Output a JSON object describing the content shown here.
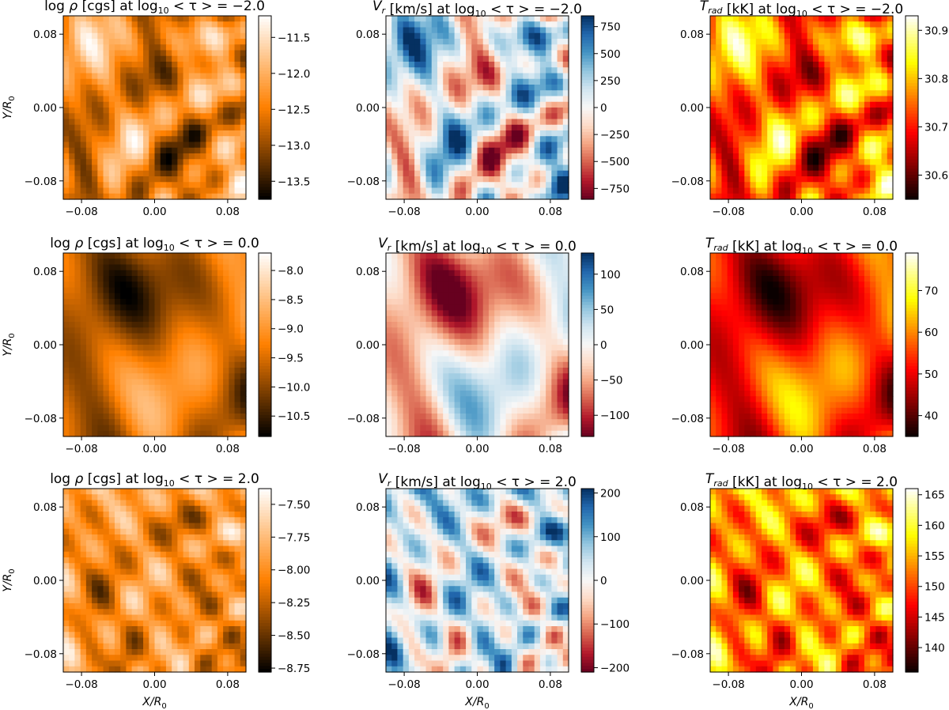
{
  "figure": {
    "rows": [
      "log_tau_-2",
      "log_tau_0",
      "log_tau_2"
    ],
    "columns": [
      "density",
      "radial_velocity",
      "radiation_temperature"
    ]
  },
  "chart_data": [
    {
      "type": "heatmap",
      "row": 0,
      "col": 0,
      "title": {
        "pre": "log ",
        "sym": "ρ",
        "mid": " [cgs] at log",
        "sub": "10",
        "post": " < τ > = −2.0"
      },
      "colormap": "afmhot",
      "field": "density",
      "xlabel": "",
      "ylabel": "Y/R0",
      "xlim": [
        -0.1,
        0.1
      ],
      "ylim": [
        -0.1,
        0.1
      ],
      "xticks": [
        -0.08,
        0.0,
        0.08
      ],
      "xtick_labels": [
        "−0.08",
        "0.00",
        "0.08"
      ],
      "yticks": [
        -0.08,
        0.0,
        0.08
      ],
      "ytick_labels": [
        "−0.08",
        "0.00",
        "0.08"
      ],
      "colorbar": {
        "range": [
          -13.75,
          -11.2
        ],
        "ticks": [
          -13.5,
          -13.0,
          -12.5,
          -12.0,
          -11.5
        ],
        "labels": [
          "−13.5",
          "−13.0",
          "−12.5",
          "−12.0",
          "−11.5"
        ]
      }
    },
    {
      "type": "heatmap",
      "row": 0,
      "col": 1,
      "title": {
        "pre": "",
        "sym": "V",
        "symsub": "r",
        "mid": " [km/s] at log",
        "sub": "10",
        "post": " < τ > = −2.0"
      },
      "colormap": "RdBu",
      "field": "velocity",
      "xlabel": "",
      "ylabel": "",
      "xlim": [
        -0.1,
        0.1
      ],
      "ylim": [
        -0.1,
        0.1
      ],
      "xticks": [
        -0.08,
        0.0,
        0.08
      ],
      "xtick_labels": [
        "−0.08",
        "0.00",
        "0.08"
      ],
      "yticks": [
        -0.08,
        0.0,
        0.08
      ],
      "ytick_labels": [
        "−0.08",
        "0.00",
        "0.08"
      ],
      "colorbar": {
        "range": [
          -850,
          850
        ],
        "ticks": [
          -750,
          -500,
          -250,
          0,
          250,
          500,
          750
        ],
        "labels": [
          "−750",
          "−500",
          "−250",
          "0",
          "250",
          "500",
          "750"
        ]
      }
    },
    {
      "type": "heatmap",
      "row": 0,
      "col": 2,
      "title": {
        "pre": "",
        "sym": "T",
        "symsub": "rad",
        "mid": " [kK] at log",
        "sub": "10",
        "post": " < τ > = −2.0"
      },
      "colormap": "hot",
      "field": "temperature",
      "xlabel": "",
      "ylabel": "",
      "xlim": [
        -0.1,
        0.1
      ],
      "ylim": [
        -0.1,
        0.1
      ],
      "xticks": [
        -0.08,
        0.0,
        0.08
      ],
      "xtick_labels": [
        "−0.08",
        "0.00",
        "0.08"
      ],
      "yticks": [
        -0.08,
        0.0,
        0.08
      ],
      "ytick_labels": [
        "−0.08",
        "0.00",
        "0.08"
      ],
      "colorbar": {
        "range": [
          30.55,
          30.93
        ],
        "ticks": [
          30.6,
          30.7,
          30.8,
          30.9
        ],
        "labels": [
          "30.6",
          "30.7",
          "30.8",
          "30.9"
        ]
      }
    },
    {
      "type": "heatmap",
      "row": 1,
      "col": 0,
      "title": {
        "pre": "log ",
        "sym": "ρ",
        "mid": " [cgs] at log",
        "sub": "10",
        "post": " < τ > = 0.0"
      },
      "colormap": "afmhot",
      "field": "density",
      "xlabel": "",
      "ylabel": "Y/R0",
      "xlim": [
        -0.1,
        0.1
      ],
      "ylim": [
        -0.1,
        0.1
      ],
      "xticks": [
        -0.08,
        0.0,
        0.08
      ],
      "xtick_labels": [
        "−0.08",
        "0.00",
        "0.08"
      ],
      "yticks": [
        -0.08,
        0.0,
        0.08
      ],
      "ytick_labels": [
        "−0.08",
        "0.00",
        "0.08"
      ],
      "colorbar": {
        "range": [
          -10.85,
          -7.7
        ],
        "ticks": [
          -10.5,
          -10.0,
          -9.5,
          -9.0,
          -8.5,
          -8.0
        ],
        "labels": [
          "−10.5",
          "−10.0",
          "−9.5",
          "−9.0",
          "−8.5",
          "−8.0"
        ]
      }
    },
    {
      "type": "heatmap",
      "row": 1,
      "col": 1,
      "title": {
        "pre": "",
        "sym": "V",
        "symsub": "r",
        "mid": " [km/s] at log",
        "sub": "10",
        "post": " < τ > = 0.0"
      },
      "colormap": "RdBu",
      "field": "velocity",
      "xlabel": "",
      "ylabel": "",
      "xlim": [
        -0.1,
        0.1
      ],
      "ylim": [
        -0.1,
        0.1
      ],
      "xticks": [
        -0.08,
        0.0,
        0.08
      ],
      "xtick_labels": [
        "−0.08",
        "0.00",
        "0.08"
      ],
      "yticks": [
        -0.08,
        0.0,
        0.08
      ],
      "ytick_labels": [
        "−0.08",
        "0.00",
        "0.08"
      ],
      "colorbar": {
        "range": [
          -130,
          130
        ],
        "ticks": [
          -100,
          -50,
          0,
          50,
          100
        ],
        "labels": [
          "−100",
          "−50",
          "0",
          "50",
          "100"
        ]
      }
    },
    {
      "type": "heatmap",
      "row": 1,
      "col": 2,
      "title": {
        "pre": "",
        "sym": "T",
        "symsub": "rad",
        "mid": " [kK] at log",
        "sub": "10",
        "post": " < τ > = 0.0"
      },
      "colormap": "hot",
      "field": "temperature",
      "xlabel": "",
      "ylabel": "",
      "xlim": [
        -0.1,
        0.1
      ],
      "ylim": [
        -0.1,
        0.1
      ],
      "xticks": [
        -0.08,
        0.0,
        0.08
      ],
      "xtick_labels": [
        "−0.08",
        "0.00",
        "0.08"
      ],
      "yticks": [
        -0.08,
        0.0,
        0.08
      ],
      "ytick_labels": [
        "−0.08",
        "0.00",
        "0.08"
      ],
      "colorbar": {
        "range": [
          35,
          79
        ],
        "ticks": [
          40,
          50,
          60,
          70
        ],
        "labels": [
          "40",
          "50",
          "60",
          "70"
        ]
      }
    },
    {
      "type": "heatmap",
      "row": 2,
      "col": 0,
      "title": {
        "pre": "log ",
        "sym": "ρ",
        "mid": " [cgs] at log",
        "sub": "10",
        "post": " < τ > = 2.0"
      },
      "colormap": "afmhot",
      "field": "density",
      "xlabel": "X/R0",
      "ylabel": "Y/R0",
      "xlim": [
        -0.1,
        0.1
      ],
      "ylim": [
        -0.1,
        0.1
      ],
      "xticks": [
        -0.08,
        0.0,
        0.08
      ],
      "xtick_labels": [
        "−0.08",
        "0.00",
        "0.08"
      ],
      "yticks": [
        -0.08,
        0.0,
        0.08
      ],
      "ytick_labels": [
        "−0.08",
        "0.00",
        "0.08"
      ],
      "colorbar": {
        "range": [
          -8.78,
          -7.38
        ],
        "ticks": [
          -8.75,
          -8.5,
          -8.25,
          -8.0,
          -7.75,
          -7.5
        ],
        "labels": [
          "−8.75",
          "−8.50",
          "−8.25",
          "−8.00",
          "−7.75",
          "−7.50"
        ]
      }
    },
    {
      "type": "heatmap",
      "row": 2,
      "col": 1,
      "title": {
        "pre": "",
        "sym": "V",
        "symsub": "r",
        "mid": " [km/s] at log",
        "sub": "10",
        "post": " < τ > = 2.0"
      },
      "colormap": "RdBu",
      "field": "velocity",
      "xlabel": "X/R0",
      "ylabel": "",
      "xlim": [
        -0.1,
        0.1
      ],
      "ylim": [
        -0.1,
        0.1
      ],
      "xticks": [
        -0.08,
        0.0,
        0.08
      ],
      "xtick_labels": [
        "−0.08",
        "0.00",
        "0.08"
      ],
      "yticks": [
        -0.08,
        0.0,
        0.08
      ],
      "ytick_labels": [
        "−0.08",
        "0.00",
        "0.08"
      ],
      "colorbar": {
        "range": [
          -210,
          210
        ],
        "ticks": [
          -200,
          -100,
          0,
          100,
          200
        ],
        "labels": [
          "−200",
          "−100",
          "0",
          "100",
          "200"
        ]
      }
    },
    {
      "type": "heatmap",
      "row": 2,
      "col": 2,
      "title": {
        "pre": "",
        "sym": "T",
        "symsub": "rad",
        "mid": " [kK] at log",
        "sub": "10",
        "post": " < τ > = 2.0"
      },
      "colormap": "hot",
      "field": "temperature",
      "xlabel": "X/R0",
      "ylabel": "",
      "xlim": [
        -0.1,
        0.1
      ],
      "ylim": [
        -0.1,
        0.1
      ],
      "xticks": [
        -0.08,
        0.0,
        0.08
      ],
      "xtick_labels": [
        "−0.08",
        "0.00",
        "0.08"
      ],
      "yticks": [
        -0.08,
        0.0,
        0.08
      ],
      "ytick_labels": [
        "−0.08",
        "0.00",
        "0.08"
      ],
      "colorbar": {
        "range": [
          136,
          166
        ],
        "ticks": [
          140,
          145,
          150,
          155,
          160,
          165
        ],
        "labels": [
          "140",
          "145",
          "150",
          "155",
          "160",
          "165"
        ]
      }
    }
  ]
}
